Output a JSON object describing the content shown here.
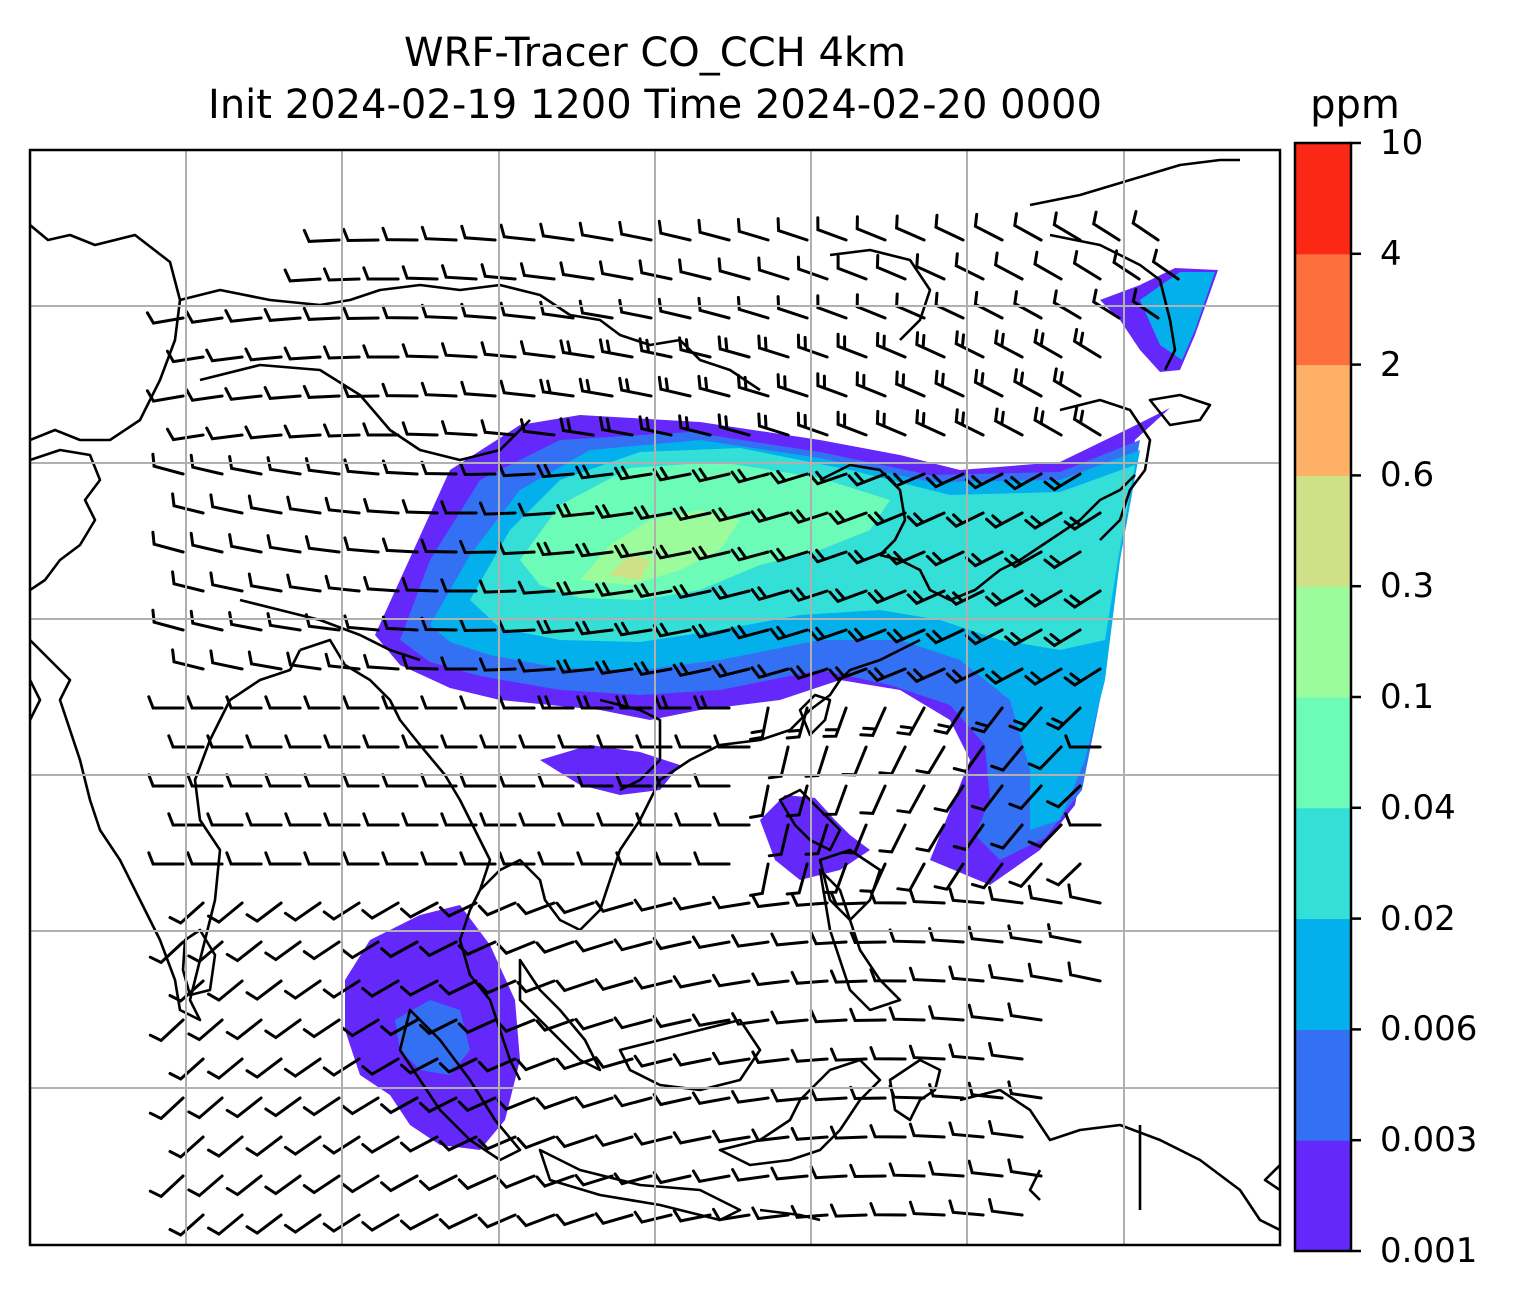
{
  "title": {
    "line1": "WRF-Tracer CO_CCH 4km",
    "line2": "Init 2024-02-19 1200 Time 2024-02-20 0000"
  },
  "colorbar": {
    "unit": "ppm",
    "levels": [
      "0.001",
      "0.003",
      "0.006",
      "0.02",
      "0.04",
      "0.1",
      "0.3",
      "0.6",
      "2",
      "4",
      "10"
    ],
    "colors": [
      "#6428FA",
      "#3470F4",
      "#04B0EC",
      "#34DFD8",
      "#6CFCB8",
      "#9CFC9C",
      "#D0E087",
      "#FDB066",
      "#FD703E",
      "#FA2814"
    ]
  },
  "map": {
    "gridlines": true,
    "wind_barbs": true,
    "coastlines": true
  }
}
